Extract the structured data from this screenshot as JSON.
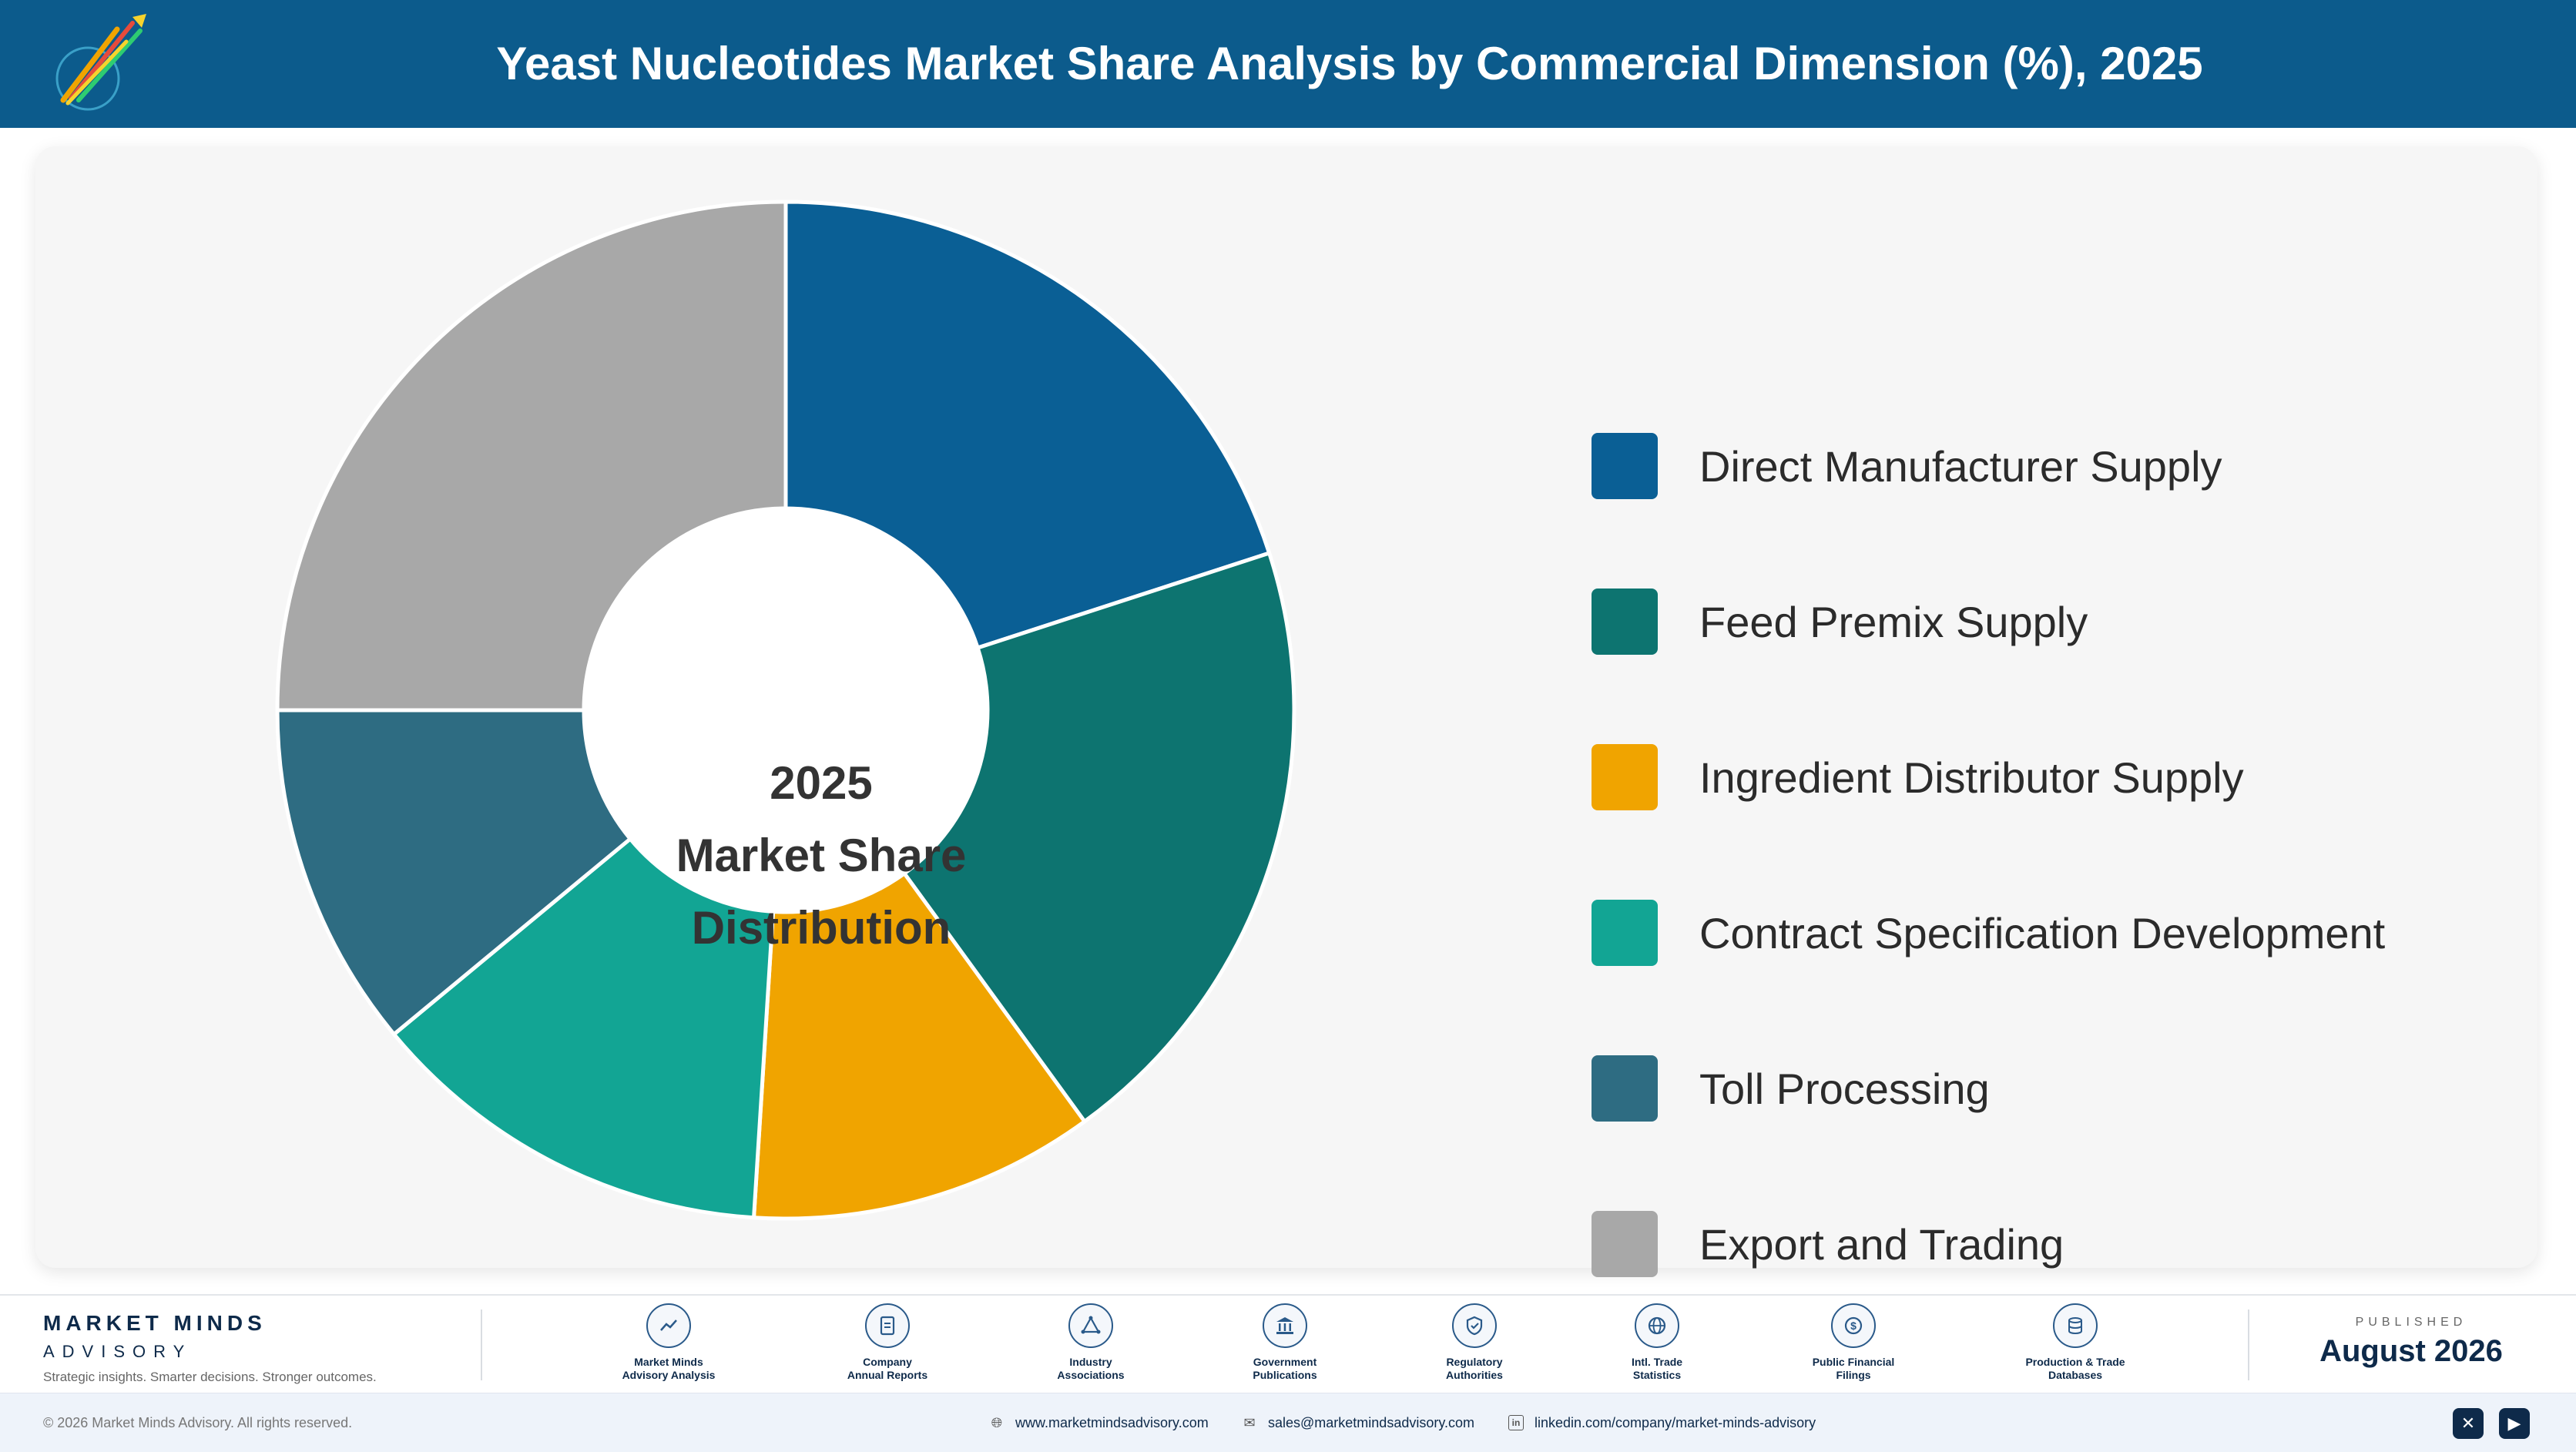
{
  "header": {
    "title": "Yeast Nucleotides Market Share Analysis by Commercial Dimension (%), 2025",
    "logo_text": "Market Minds Advisory",
    "background_color": "#0c5b8c"
  },
  "chart_data": {
    "type": "pie",
    "center_label": [
      "2025",
      "Market Share",
      "Distribution"
    ],
    "categories": [
      "Direct Manufacturer Supply",
      "Feed Premix Supply",
      "Ingredient Distributor Supply",
      "Contract Specification Development",
      "Toll Processing",
      "Export and Trading"
    ],
    "values": [
      20,
      20,
      11,
      13,
      11,
      25
    ],
    "colors": [
      "#0a5f95",
      "#0d7470",
      "#f0a400",
      "#12a594",
      "#2e6c82",
      "#a8a8a8"
    ],
    "legend_position": "right"
  },
  "footer": {
    "brand_name": "MARKET MINDS",
    "brand_sub": "ADVISORY",
    "tagline": "Strategic insights. Smarter decisions. Stronger outcomes.",
    "sources": [
      {
        "icon": "trend-chart-icon",
        "line1": "Market Minds",
        "line2": "Advisory Analysis"
      },
      {
        "icon": "document-icon",
        "line1": "Company",
        "line2": "Annual Reports"
      },
      {
        "icon": "network-icon",
        "line1": "Industry",
        "line2": "Associations"
      },
      {
        "icon": "government-building-icon",
        "line1": "Government",
        "line2": "Publications"
      },
      {
        "icon": "shield-check-icon",
        "line1": "Regulatory",
        "line2": "Authorities"
      },
      {
        "icon": "globe-icon",
        "line1": "Intl. Trade",
        "line2": "Statistics"
      },
      {
        "icon": "currency-icon",
        "line1": "Public Financial",
        "line2": "Filings"
      },
      {
        "icon": "database-icon",
        "line1": "Production & Trade",
        "line2": "Databases"
      }
    ],
    "published_label": "PUBLISHED",
    "published_date": "August 2026",
    "copyright": "© 2026 Market Minds Advisory. All rights reserved.",
    "website": "www.marketmindsadvisory.com",
    "email": "sales@marketmindsadvisory.com",
    "linkedin": "linkedin.com/company/market-minds-advisory"
  }
}
